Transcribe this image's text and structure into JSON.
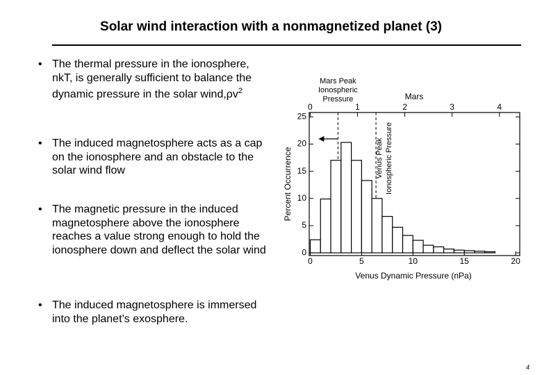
{
  "title": "Solar wind interaction with a nonmagnetized planet (3)",
  "bullets": [
    {
      "text": "The thermal pressure in the ionosphere, nkT, is generally sufficient to balance the dynamic pressure in the solar wind,ρv",
      "sup": "2"
    },
    {
      "text": "The induced magnetosphere acts as a cap on the ionosphere and an obstacle to the solar wind flow"
    },
    {
      "text": "The magnetic pressure in the induced magnetosphere above the ionosphere reaches a value strong enough to hold the ionosphere down and deflect the solar wind"
    },
    {
      "text": "The induced magnetosphere is immersed into the planet’s exosphere."
    }
  ],
  "bullet_symbol": "•",
  "page_number": "4",
  "chart_data": {
    "type": "histogram",
    "xlabel": "Venus Dynamic Pressure (nPa)",
    "ylabel": "Percent Occurrence",
    "x2label": "Mars",
    "bins": [
      0,
      1,
      2,
      3,
      4,
      5,
      6,
      7,
      8,
      9,
      10,
      11,
      12,
      13,
      14,
      15,
      16,
      17,
      18
    ],
    "values": [
      2.4,
      9.9,
      17,
      20.3,
      17,
      13.3,
      10,
      6.7,
      4.7,
      3.2,
      2.3,
      1.4,
      1.1,
      0.7,
      0.5,
      0.4,
      0.3,
      0.2
    ],
    "xlim": [
      -0.1,
      20.4
    ],
    "xticks": [
      0,
      5,
      10,
      15,
      20
    ],
    "ylim": [
      -0.5,
      25.8
    ],
    "yticks": [
      0,
      5,
      10,
      15,
      20,
      25
    ],
    "x2lim": [
      -0.02,
      4.43
    ],
    "x2ticks": [
      0,
      1,
      2,
      3,
      4
    ],
    "color": "#ffffff",
    "annotations": [
      {
        "lines": [
          "Mars Peak",
          "Ionospheric",
          "Pressure"
        ],
        "x": 2.7
      },
      {
        "lines": [
          "Venus Peak",
          "Ionospheric Pressure"
        ],
        "x": 6.4
      }
    ]
  }
}
